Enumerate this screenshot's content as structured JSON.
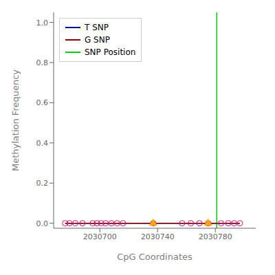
{
  "chart_data": {
    "type": "line",
    "xlabel": "CpG Coordinates",
    "ylabel": "Methylation Frequency",
    "xlim": [
      2030668,
      2030808
    ],
    "ylim": [
      -0.025,
      1.05
    ],
    "xticks": [
      2030700,
      2030740,
      2030780
    ],
    "yticks": [
      {
        "value": 0.0,
        "label": "0.0"
      },
      0.2,
      0.4,
      0.6,
      0.8,
      {
        "value": 1.0,
        "label": "1.0"
      }
    ],
    "grid": false,
    "legend": "upper left",
    "series": [
      {
        "name": "T SNP",
        "type": "line",
        "color": "#00008B",
        "x": [
          2030676,
          2030679,
          2030683,
          2030688,
          2030695,
          2030698,
          2030701,
          2030704,
          2030708,
          2030712,
          2030716,
          2030737,
          2030757,
          2030763,
          2030769,
          2030775,
          2030784,
          2030789,
          2030793,
          2030797
        ],
        "values": [
          0.0,
          0.0,
          0.0,
          0.0,
          0.0,
          0.0,
          0.0,
          0.0,
          0.0,
          0.0,
          0.0,
          0.0,
          0.0,
          0.0,
          0.0,
          0.0,
          0.0,
          0.0,
          0.0,
          0.0
        ]
      },
      {
        "name": "G SNP",
        "type": "line",
        "color": "#8B0000",
        "x": [
          2030676,
          2030679,
          2030683,
          2030688,
          2030695,
          2030698,
          2030701,
          2030704,
          2030708,
          2030712,
          2030716,
          2030737,
          2030757,
          2030763,
          2030769,
          2030775,
          2030784,
          2030789,
          2030793,
          2030797
        ],
        "values": [
          0.0,
          0.0,
          0.0,
          0.0,
          0.0,
          0.0,
          0.0,
          0.0,
          0.0,
          0.0,
          0.0,
          0.0,
          0.0,
          0.0,
          0.0,
          0.0,
          0.0,
          0.0,
          0.0,
          0.0
        ]
      },
      {
        "name": "SNP Position",
        "type": "vline",
        "color": "#00CC00",
        "x": [
          2030781
        ]
      },
      {
        "type": "scatter",
        "marker": "circle",
        "color": "#CC1177",
        "x": [
          2030676,
          2030679,
          2030683,
          2030688,
          2030695,
          2030698,
          2030701,
          2030704,
          2030708,
          2030712,
          2030716,
          2030737,
          2030757,
          2030763,
          2030769,
          2030775,
          2030784,
          2030789,
          2030793,
          2030797
        ],
        "values": [
          0.0,
          0.0,
          0.0,
          0.0,
          0.0,
          0.0,
          0.0,
          0.0,
          0.0,
          0.0,
          0.0,
          0.0,
          0.0,
          0.0,
          0.0,
          0.0,
          0.0,
          0.0,
          0.0,
          0.0
        ]
      },
      {
        "type": "scatter",
        "marker": "triangle",
        "color": "#FFA500",
        "x": [
          2030737,
          2030775
        ],
        "values": [
          0.0,
          0.0
        ]
      }
    ]
  }
}
